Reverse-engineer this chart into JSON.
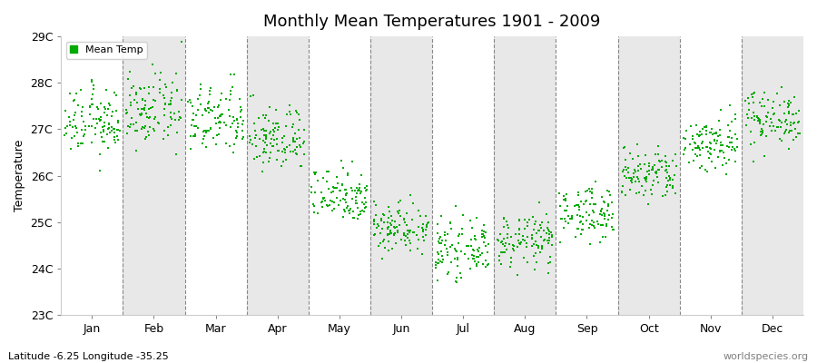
{
  "title": "Monthly Mean Temperatures 1901 - 2009",
  "ylabel": "Temperature",
  "xlabel_bottom_left": "Latitude -6.25 Longitude -35.25",
  "xlabel_bottom_right": "worldspecies.org",
  "ylim": [
    23,
    29
  ],
  "ytick_labels": [
    "23C",
    "24C",
    "25C",
    "26C",
    "27C",
    "28C",
    "29C"
  ],
  "ytick_values": [
    23,
    24,
    25,
    26,
    27,
    28,
    29
  ],
  "months": [
    "Jan",
    "Feb",
    "Mar",
    "Apr",
    "May",
    "Jun",
    "Jul",
    "Aug",
    "Sep",
    "Oct",
    "Nov",
    "Dec"
  ],
  "marker_color": "#00aa00",
  "marker_size": 4,
  "legend_label": "Mean Temp",
  "band_colors": [
    "#ffffff",
    "#e8e8e8"
  ],
  "n_years": 109,
  "monthly_means": [
    27.15,
    27.4,
    27.2,
    26.8,
    25.6,
    24.9,
    24.4,
    24.6,
    25.2,
    26.0,
    26.7,
    27.25
  ],
  "monthly_stds": [
    0.35,
    0.38,
    0.38,
    0.35,
    0.3,
    0.28,
    0.28,
    0.28,
    0.28,
    0.3,
    0.32,
    0.3
  ]
}
